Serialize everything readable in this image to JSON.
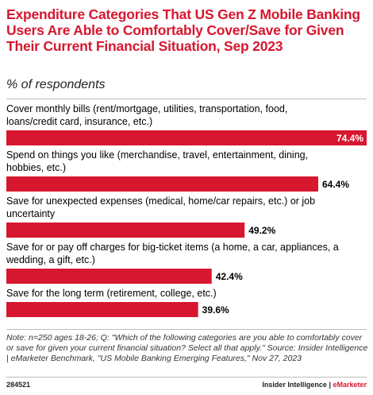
{
  "title": "Expenditure Categories That US Gen Z Mobile Banking Users Are Able to Comfortably Cover/Save for Given Their Current Financial Situation, Sep 2023",
  "subtitle": "% of respondents",
  "chart_data": {
    "type": "bar",
    "orientation": "horizontal",
    "categories": [
      [
        "Cover monthly bills (rent/mortgage, utilities, transportation, food,",
        "loans/credit card, insurance, etc.)"
      ],
      [
        "Spend on things you like (merchandise, travel, entertainment, dining,",
        "hobbies, etc.)"
      ],
      [
        "Save for unexpected expenses (medical, home/car repairs, etc.) or job",
        "uncertainty"
      ],
      [
        "Save for or pay off charges for big-ticket items (a home, a car, appliances, a",
        "wedding, a gift, etc.)"
      ],
      [
        "Save for the long term (retirement, college, etc.)"
      ]
    ],
    "values": [
      74.4,
      64.4,
      49.2,
      42.4,
      39.6
    ],
    "value_labels": [
      "74.4%",
      "64.4%",
      "49.2%",
      "42.4%",
      "39.6%"
    ],
    "xlim": [
      0,
      74.4
    ],
    "bar_color": "#d7172f",
    "highlight_label_color": "#ffffff",
    "label_color": "#000000"
  },
  "notes": "Note: n=250 ages 18-26; Q: \"Which of the following categories are you able to comfortably cover or save for given your current financial situation? Select all that apply.\" Source: Insider Intelligence | eMarketer Benchmark, \"US Mobile Banking Emerging Features,\" Nov 27, 2023",
  "footer": {
    "id": "284521",
    "brand_main": "Insider Intelligence",
    "brand_sep": " | ",
    "brand_accent": "eMarketer"
  }
}
